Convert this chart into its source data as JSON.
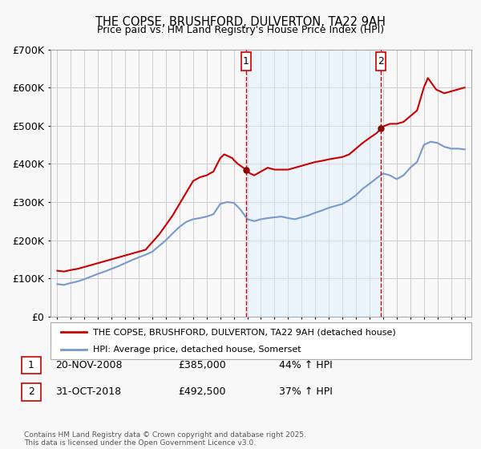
{
  "title": "THE COPSE, BRUSHFORD, DULVERTON, TA22 9AH",
  "subtitle": "Price paid vs. HM Land Registry's House Price Index (HPI)",
  "ylim": [
    0,
    700000
  ],
  "yticks": [
    0,
    100000,
    200000,
    300000,
    400000,
    500000,
    600000,
    700000
  ],
  "ytick_labels": [
    "£0",
    "£100K",
    "£200K",
    "£300K",
    "£400K",
    "£500K",
    "£600K",
    "£700K"
  ],
  "xlim_start": 1994.5,
  "xlim_end": 2025.5,
  "background_color": "#f8f8f8",
  "plot_bg_color": "#f8f8f8",
  "grid_color": "#cccccc",
  "vline1_x": 2008.9,
  "vline2_x": 2018.85,
  "shade_color": "#ddeeff",
  "shade_alpha": 0.45,
  "vline_color": "#cc0000",
  "marker1_label": "1",
  "marker2_label": "2",
  "transaction1": {
    "date": "20-NOV-2008",
    "price": "£385,000",
    "hpi": "44% ↑ HPI"
  },
  "transaction2": {
    "date": "31-OCT-2018",
    "price": "£492,500",
    "hpi": "37% ↑ HPI"
  },
  "legend1_label": "THE COPSE, BRUSHFORD, DULVERTON, TA22 9AH (detached house)",
  "legend2_label": "HPI: Average price, detached house, Somerset",
  "footnote": "Contains HM Land Registry data © Crown copyright and database right 2025.\nThis data is licensed under the Open Government Licence v3.0.",
  "red_line_color": "#cc0000",
  "blue_line_color": "#7799cc",
  "dot_color": "#880000",
  "red_x": [
    1995.0,
    1995.5,
    1996.0,
    1996.5,
    1997.0,
    1997.5,
    1998.0,
    1998.5,
    1999.0,
    1999.5,
    2000.0,
    2000.5,
    2001.0,
    2001.5,
    2002.0,
    2002.5,
    2003.0,
    2003.5,
    2004.0,
    2004.5,
    2005.0,
    2005.5,
    2006.0,
    2006.5,
    2007.0,
    2007.3,
    2007.6,
    2007.9,
    2008.0,
    2008.3,
    2008.9,
    2009.2,
    2009.5,
    2010.0,
    2010.5,
    2011.0,
    2011.5,
    2012.0,
    2012.5,
    2013.0,
    2013.5,
    2014.0,
    2014.5,
    2015.0,
    2015.5,
    2016.0,
    2016.5,
    2017.0,
    2017.5,
    2018.0,
    2018.5,
    2018.85,
    2019.0,
    2019.5,
    2020.0,
    2020.5,
    2021.0,
    2021.5,
    2022.0,
    2022.3,
    2022.6,
    2022.9,
    2023.2,
    2023.5,
    2024.0,
    2024.5,
    2025.0
  ],
  "red_y": [
    120000,
    118000,
    122000,
    125000,
    130000,
    135000,
    140000,
    145000,
    150000,
    155000,
    160000,
    165000,
    170000,
    175000,
    195000,
    215000,
    240000,
    265000,
    295000,
    325000,
    355000,
    365000,
    370000,
    380000,
    415000,
    425000,
    420000,
    415000,
    410000,
    400000,
    385000,
    375000,
    370000,
    380000,
    390000,
    385000,
    385000,
    385000,
    390000,
    395000,
    400000,
    405000,
    408000,
    412000,
    415000,
    418000,
    425000,
    440000,
    455000,
    468000,
    480000,
    492500,
    498000,
    505000,
    505000,
    510000,
    525000,
    540000,
    600000,
    625000,
    610000,
    595000,
    590000,
    585000,
    590000,
    595000,
    600000
  ],
  "blue_x": [
    1995.0,
    1995.5,
    1996.0,
    1996.5,
    1997.0,
    1997.5,
    1998.0,
    1998.5,
    1999.0,
    1999.5,
    2000.0,
    2000.5,
    2001.0,
    2001.5,
    2002.0,
    2002.5,
    2003.0,
    2003.5,
    2004.0,
    2004.5,
    2005.0,
    2005.5,
    2006.0,
    2006.5,
    2007.0,
    2007.5,
    2008.0,
    2008.5,
    2009.0,
    2009.5,
    2010.0,
    2010.5,
    2011.0,
    2011.5,
    2012.0,
    2012.5,
    2013.0,
    2013.5,
    2014.0,
    2014.5,
    2015.0,
    2015.5,
    2016.0,
    2016.5,
    2017.0,
    2017.5,
    2018.0,
    2018.5,
    2019.0,
    2019.5,
    2020.0,
    2020.5,
    2021.0,
    2021.5,
    2022.0,
    2022.5,
    2023.0,
    2023.5,
    2024.0,
    2024.5,
    2025.0
  ],
  "blue_y": [
    85000,
    83000,
    88000,
    92000,
    98000,
    105000,
    112000,
    118000,
    125000,
    132000,
    140000,
    148000,
    155000,
    162000,
    170000,
    185000,
    200000,
    218000,
    235000,
    248000,
    255000,
    258000,
    262000,
    268000,
    295000,
    300000,
    298000,
    280000,
    255000,
    250000,
    255000,
    258000,
    260000,
    262000,
    258000,
    255000,
    260000,
    265000,
    272000,
    278000,
    285000,
    290000,
    295000,
    305000,
    318000,
    335000,
    348000,
    362000,
    375000,
    370000,
    360000,
    370000,
    390000,
    405000,
    450000,
    458000,
    455000,
    445000,
    440000,
    440000,
    438000
  ]
}
